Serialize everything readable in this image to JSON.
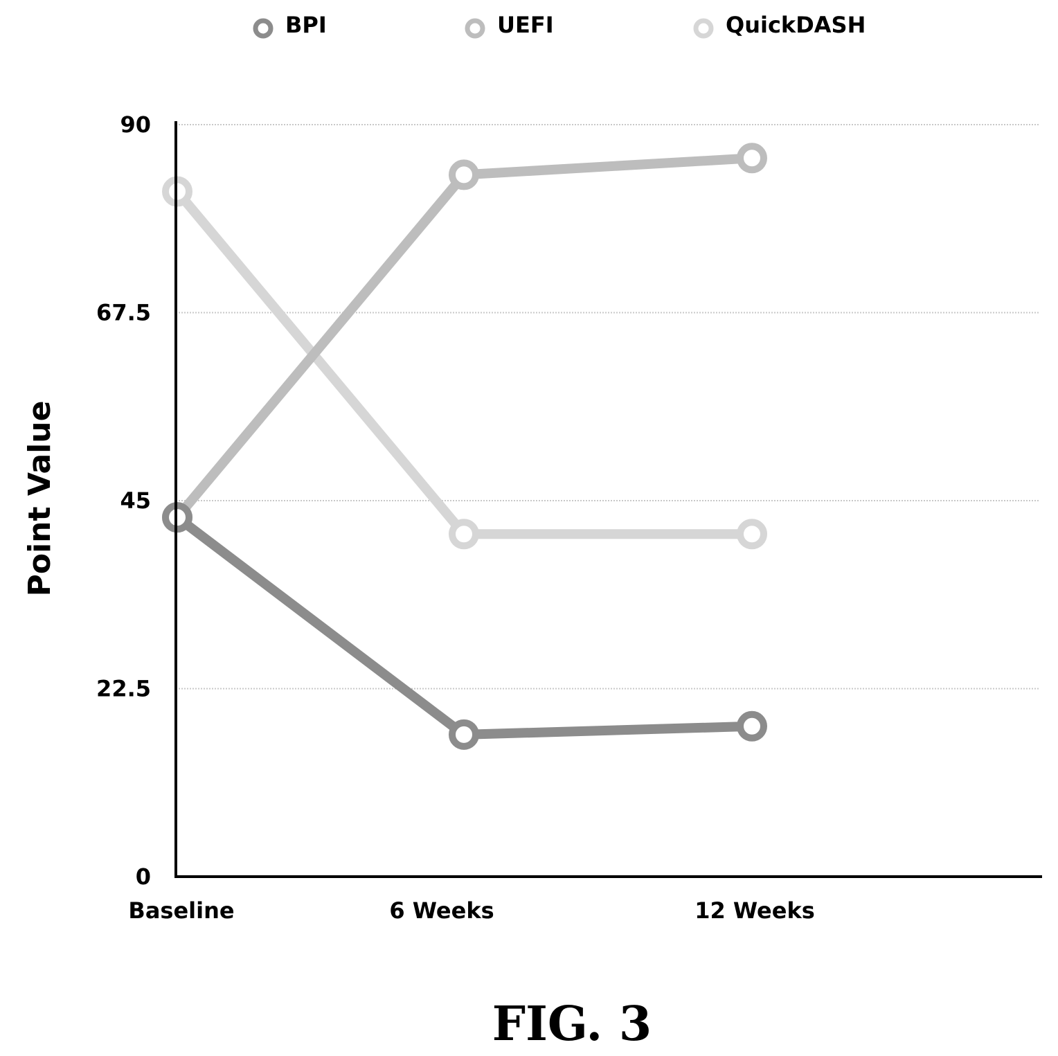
{
  "chart_data": {
    "type": "line",
    "categories": [
      "Baseline",
      "6 Weeks",
      "12 Weeks"
    ],
    "series": [
      {
        "name": "BPI",
        "values": [
          43,
          17,
          18
        ],
        "color": "#8c8c8c"
      },
      {
        "name": "UEFI",
        "values": [
          43,
          84,
          86
        ],
        "color": "#bdbdbd"
      },
      {
        "name": "QuickDASH",
        "values": [
          82,
          41,
          41
        ],
        "color": "#d6d6d6"
      }
    ],
    "ylabel": "Point Value",
    "ylim": [
      0,
      90
    ],
    "yticks": [
      "0",
      "22.5",
      "45",
      "67.5",
      "90"
    ],
    "grid": true,
    "legend": "top"
  },
  "figure_caption": "FIG. 3"
}
